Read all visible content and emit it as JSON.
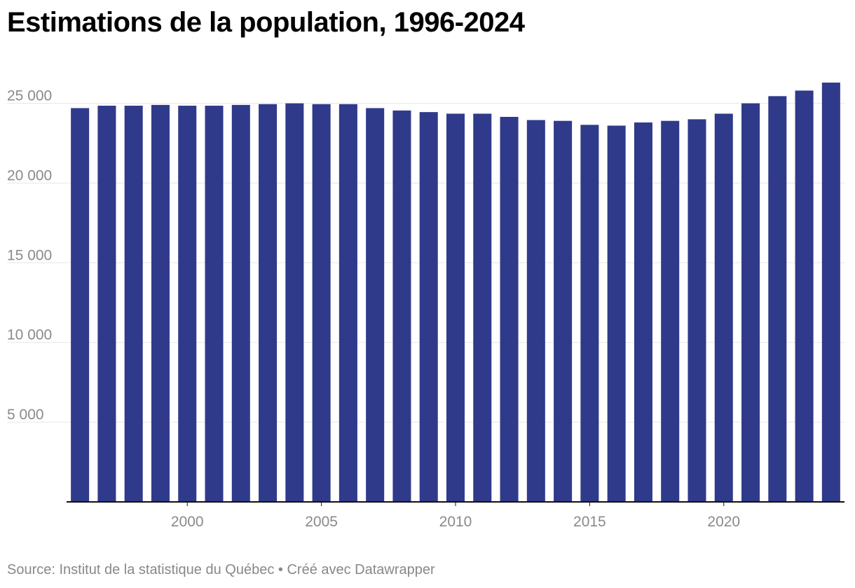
{
  "title": "Estimations de la population, 1996-2024",
  "footer": {
    "source": "Source: Institut de la statistique du Québec",
    "separator": " • ",
    "credit": "Créé avec Datawrapper"
  },
  "colors": {
    "bar": "#303a8a",
    "grid": "#e6e6e6",
    "axis": "#111111",
    "tick_text": "#8a8a8a"
  },
  "chart_data": {
    "type": "bar",
    "title": "Estimations de la population, 1996-2024",
    "xlabel": "",
    "ylabel": "",
    "categories": [
      1996,
      1997,
      1998,
      1999,
      2000,
      2001,
      2002,
      2003,
      2004,
      2005,
      2006,
      2007,
      2008,
      2009,
      2010,
      2011,
      2012,
      2013,
      2014,
      2015,
      2016,
      2017,
      2018,
      2019,
      2020,
      2021,
      2022,
      2023,
      2024
    ],
    "values": [
      24700,
      24850,
      24850,
      24900,
      24850,
      24850,
      24900,
      24950,
      25000,
      24950,
      24950,
      24700,
      24550,
      24450,
      24350,
      24350,
      24150,
      23950,
      23900,
      23650,
      23600,
      23800,
      23900,
      24000,
      24350,
      25000,
      25450,
      25800,
      26300
    ],
    "ylim": [
      0,
      26300
    ],
    "yticks": [
      5000,
      10000,
      15000,
      20000,
      25000
    ],
    "ytick_labels": [
      "5 000",
      "10 000",
      "15 000",
      "20 000",
      "25 000"
    ],
    "xticks": [
      2000,
      2005,
      2010,
      2015,
      2020
    ],
    "xtick_labels": [
      "2000",
      "2005",
      "2010",
      "2015",
      "2020"
    ],
    "grid": true,
    "legend": "none"
  }
}
